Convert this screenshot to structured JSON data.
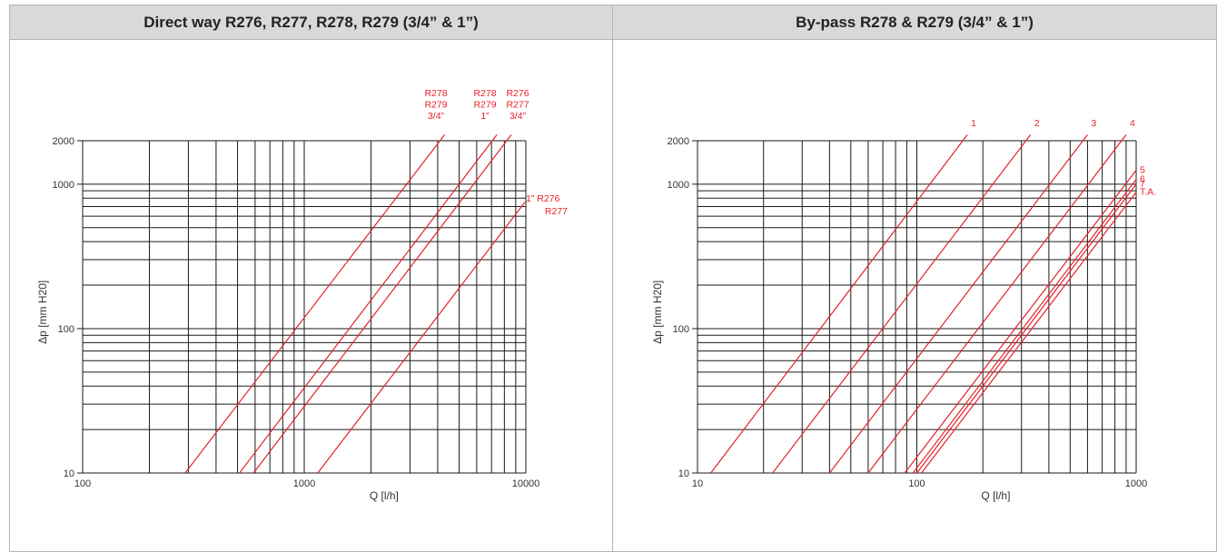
{
  "colors": {
    "curve": "#e8202a",
    "grid": "#1a1a1a",
    "header_bg": "#d9d9d9"
  },
  "chart_data": [
    {
      "type": "line",
      "title": "Direct way R276, R277, R278, R279 (3/4” & 1”)",
      "xlabel": "Q [l/h]",
      "ylabel": "Δp [mm H20]",
      "xscale": "log",
      "yscale": "log",
      "xlim": [
        100,
        10000
      ],
      "ylim": [
        10,
        2000
      ],
      "xticks": [
        "100",
        "1000",
        "10000"
      ],
      "yticks": [
        "10",
        "100",
        "1000",
        "2000"
      ],
      "grid": true,
      "series": [
        {
          "label_lines": [
            "R278",
            "R279",
            "3/4”"
          ],
          "x": [
            290,
            4300
          ],
          "y": [
            10,
            2200
          ]
        },
        {
          "label_lines": [
            "R278",
            "R279",
            "1”"
          ],
          "x": [
            510,
            7400
          ],
          "y": [
            10,
            2200
          ]
        },
        {
          "label_lines": [
            "R276",
            "R277",
            "3/4”"
          ],
          "x": [
            590,
            8600
          ],
          "y": [
            10,
            2200
          ]
        },
        {
          "label_lines": [
            "1” R276",
            "R277"
          ],
          "x": [
            1150,
            9900
          ],
          "y": [
            10,
            750
          ]
        }
      ]
    },
    {
      "type": "line",
      "title": "By-pass R278 & R279 (3/4” & 1”)",
      "xlabel": "Q [l/h]",
      "ylabel": "Δp [mm H20]",
      "xscale": "log",
      "yscale": "log",
      "xlim": [
        10,
        1000
      ],
      "ylim": [
        10,
        2000
      ],
      "xticks": [
        "10",
        "100",
        "1000"
      ],
      "yticks": [
        "10",
        "100",
        "1000",
        "2000"
      ],
      "grid": true,
      "series": [
        {
          "label_lines": [
            "1"
          ],
          "x": [
            11.5,
            170
          ],
          "y": [
            10,
            2200
          ]
        },
        {
          "label_lines": [
            "2"
          ],
          "x": [
            22,
            330
          ],
          "y": [
            10,
            2200
          ]
        },
        {
          "label_lines": [
            "3"
          ],
          "x": [
            40,
            600
          ],
          "y": [
            10,
            2200
          ]
        },
        {
          "label_lines": [
            "4"
          ],
          "x": [
            60,
            900
          ],
          "y": [
            10,
            2200
          ]
        },
        {
          "label_lines": [
            "5"
          ],
          "x": [
            88,
            1000
          ],
          "y": [
            10,
            1250
          ]
        },
        {
          "label_lines": [
            "6"
          ],
          "x": [
            96,
            1000
          ],
          "y": [
            10,
            1080
          ]
        },
        {
          "label_lines": [
            "7"
          ],
          "x": [
            100,
            1000
          ],
          "y": [
            10,
            1000
          ]
        },
        {
          "label_lines": [
            "T.A."
          ],
          "x": [
            105,
            1000
          ],
          "y": [
            10,
            880
          ]
        }
      ]
    }
  ]
}
